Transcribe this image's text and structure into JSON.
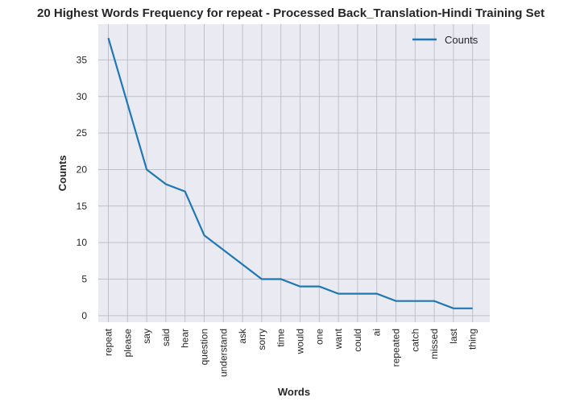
{
  "chart_data": {
    "type": "line",
    "title": "20 Highest Words Frequency for repeat - Processed Back_Translation-Hindi Training Set",
    "xlabel": "Words",
    "ylabel": "Counts",
    "categories": [
      "repeat",
      "please",
      "say",
      "said",
      "hear",
      "question",
      "understand",
      "ask",
      "sorry",
      "time",
      "would",
      "one",
      "want",
      "could",
      "ai",
      "repeated",
      "catch",
      "missed",
      "last",
      "thing"
    ],
    "series": [
      {
        "name": "Counts",
        "values": [
          38,
          29,
          20,
          18,
          17,
          11,
          9,
          7,
          5,
          5,
          4,
          4,
          3,
          3,
          3,
          2,
          2,
          2,
          1,
          1
        ]
      }
    ],
    "ylim": [
      -0.9,
      39.9
    ],
    "yticks": [
      0,
      5,
      10,
      15,
      20,
      25,
      30,
      35
    ],
    "grid": true,
    "legend_position": "top-right",
    "colors": {
      "line": "#1f77b4",
      "plot_bg": "#eaeaf2",
      "grid": "#c0c0c8"
    }
  }
}
